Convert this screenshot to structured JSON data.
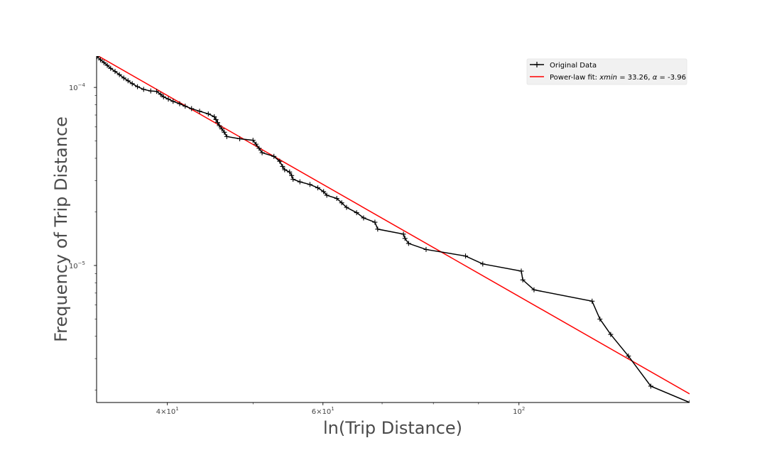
{
  "chart_data": {
    "type": "line",
    "title": "",
    "xlabel": "ln(Trip Distance)",
    "ylabel": "Frequency of Trip Distance",
    "xscale": "log",
    "yscale": "log",
    "xlim": [
      33.26,
      156
    ],
    "ylim": [
      1.7e-06,
      0.00015
    ],
    "grid": false,
    "legend_position": "top-right",
    "x_ticks": [
      {
        "value": 40,
        "base": "4",
        "exp": "1"
      },
      {
        "value": 60,
        "base": "6",
        "exp": "1"
      },
      {
        "value": 100,
        "base": "10",
        "exp": "2",
        "plain": true
      }
    ],
    "y_ticks": [
      {
        "value": 0.0001,
        "base": "10",
        "exp": "−4"
      },
      {
        "value": 1e-05,
        "base": "10",
        "exp": "−5"
      }
    ],
    "series": [
      {
        "name": "Original Data",
        "color": "#000000",
        "marker": "plus",
        "points": [
          [
            33.3,
            0.000149
          ],
          [
            33.6,
            0.000143
          ],
          [
            33.9,
            0.000138
          ],
          [
            34.2,
            0.000133
          ],
          [
            34.5,
            0.000128
          ],
          [
            34.9,
            0.000123
          ],
          [
            35.3,
            0.000118
          ],
          [
            35.7,
            0.000113
          ],
          [
            36.1,
            0.000109
          ],
          [
            36.5,
            0.000105
          ],
          [
            37.0,
            0.000101
          ],
          [
            37.6,
            9.75e-05
          ],
          [
            38.3,
            9.55e-05
          ],
          [
            38.9,
            9.5e-05
          ],
          [
            39.3,
            9.15e-05
          ],
          [
            39.6,
            8.85e-05
          ],
          [
            40.1,
            8.6e-05
          ],
          [
            40.6,
            8.35e-05
          ],
          [
            41.3,
            8.1e-05
          ],
          [
            41.9,
            7.85e-05
          ],
          [
            42.6,
            7.6e-05
          ],
          [
            43.5,
            7.35e-05
          ],
          [
            44.5,
            7.1e-05
          ],
          [
            45.2,
            6.85e-05
          ],
          [
            45.4,
            6.6e-05
          ],
          [
            45.6,
            6.35e-05
          ],
          [
            45.8,
            6.1e-05
          ],
          [
            46.1,
            5.85e-05
          ],
          [
            46.4,
            5.6e-05
          ],
          [
            46.7,
            5.3e-05
          ],
          [
            48.3,
            5.15e-05
          ],
          [
            50.0,
            5.05e-05
          ],
          [
            50.4,
            4.8e-05
          ],
          [
            50.8,
            4.55e-05
          ],
          [
            51.2,
            4.3e-05
          ],
          [
            52.8,
            4.1e-05
          ],
          [
            53.6,
            3.85e-05
          ],
          [
            54.0,
            3.6e-05
          ],
          [
            54.3,
            3.45e-05
          ],
          [
            55.0,
            3.35e-05
          ],
          [
            55.3,
            3.2e-05
          ],
          [
            55.5,
            3.05e-05
          ],
          [
            56.5,
            2.95e-05
          ],
          [
            58.0,
            2.85e-05
          ],
          [
            59.2,
            2.73e-05
          ],
          [
            60.1,
            2.6e-05
          ],
          [
            60.6,
            2.48e-05
          ],
          [
            62.2,
            2.38e-05
          ],
          [
            63.0,
            2.25e-05
          ],
          [
            63.8,
            2.12e-05
          ],
          [
            65.5,
            1.98e-05
          ],
          [
            66.7,
            1.85e-05
          ],
          [
            68.7,
            1.75e-05
          ],
          [
            69.2,
            1.6e-05
          ],
          [
            74.0,
            1.5e-05
          ],
          [
            74.3,
            1.42e-05
          ],
          [
            75.0,
            1.33e-05
          ],
          [
            78.5,
            1.23e-05
          ],
          [
            87.0,
            1.13e-05
          ],
          [
            91.0,
            1.02e-05
          ],
          [
            100.6,
            9.3e-06
          ],
          [
            101.0,
            8.3e-06
          ],
          [
            104.0,
            7.3e-06
          ],
          [
            121.0,
            6.3e-06
          ],
          [
            123.5,
            5e-06
          ],
          [
            127.0,
            4.1e-06
          ],
          [
            133.0,
            3.1e-06
          ],
          [
            141.0,
            2.1e-06
          ],
          [
            156.0,
            1.7e-06
          ]
        ]
      },
      {
        "name": "Power-law fit: $xmin = 33.26$, $\\alpha = $-3.96",
        "label_prefix": "Power-law fit: ",
        "label_math_1": "xmin",
        "label_mid": " = 33.26, ",
        "label_math_2": "α",
        "label_suffix": " = -3.96",
        "color": "#ff0000",
        "marker": "none",
        "points": [
          [
            33.26,
            0.000152
          ],
          [
            156.0,
            1.9e-06
          ]
        ]
      }
    ]
  }
}
